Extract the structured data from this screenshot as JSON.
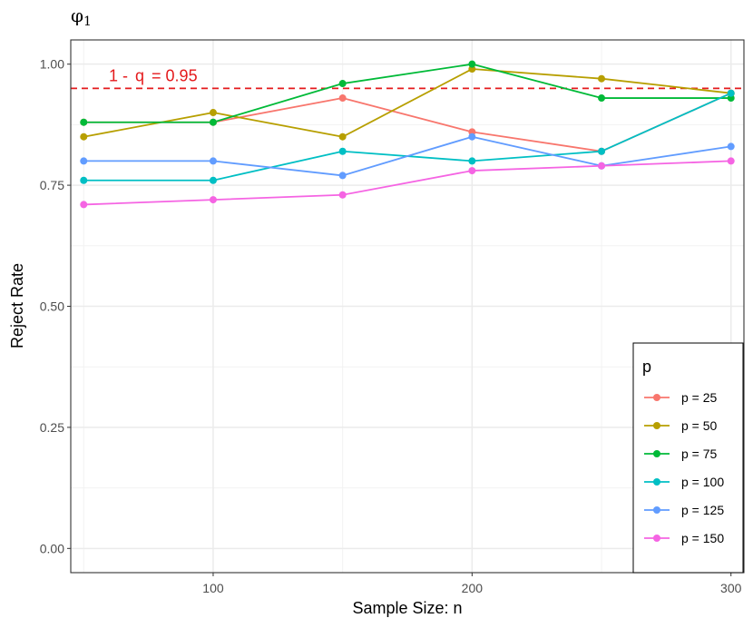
{
  "chart_data": {
    "type": "line",
    "title": "φ",
    "title_subscript": "1",
    "xlabel": "Sample Size: n",
    "ylabel": "Reject Rate",
    "x": [
      50,
      100,
      150,
      200,
      250,
      300
    ],
    "xlim": [
      45,
      305
    ],
    "ylim": [
      -0.05,
      1.05
    ],
    "x_ticks": [
      100,
      200,
      300
    ],
    "x_tick_labels": [
      "100",
      "200",
      "300"
    ],
    "y_ticks": [
      0,
      0.25,
      0.5,
      0.75,
      1.0
    ],
    "y_tick_labels": [
      "0.00",
      "0.25",
      "0.50",
      "0.75",
      "1.00"
    ],
    "grid": true,
    "reference_line": {
      "value": 0.95,
      "label_parts": [
        "1 -",
        "q",
        "= 0.95"
      ],
      "color": "#e41a1c",
      "style": "dashed"
    },
    "legend": {
      "title": "p",
      "position": "bottom-right"
    },
    "series": [
      {
        "name": "p = 25",
        "color": "#F8766D",
        "values": [
          0.88,
          0.88,
          0.93,
          0.86,
          0.82,
          0.94
        ]
      },
      {
        "name": "p = 50",
        "color": "#B79F00",
        "values": [
          0.85,
          0.9,
          0.85,
          0.99,
          0.97,
          0.94
        ]
      },
      {
        "name": "p = 75",
        "color": "#00BA38",
        "values": [
          0.88,
          0.88,
          0.96,
          1.0,
          0.93,
          0.93
        ]
      },
      {
        "name": "p = 100",
        "color": "#00BFC4",
        "values": [
          0.76,
          0.76,
          0.82,
          0.8,
          0.82,
          0.94
        ]
      },
      {
        "name": "p = 125",
        "color": "#619CFF",
        "values": [
          0.8,
          0.8,
          0.77,
          0.85,
          0.79,
          0.83
        ]
      },
      {
        "name": "p = 150",
        "color": "#F564E3",
        "values": [
          0.71,
          0.72,
          0.73,
          0.78,
          0.79,
          0.8
        ]
      }
    ]
  }
}
